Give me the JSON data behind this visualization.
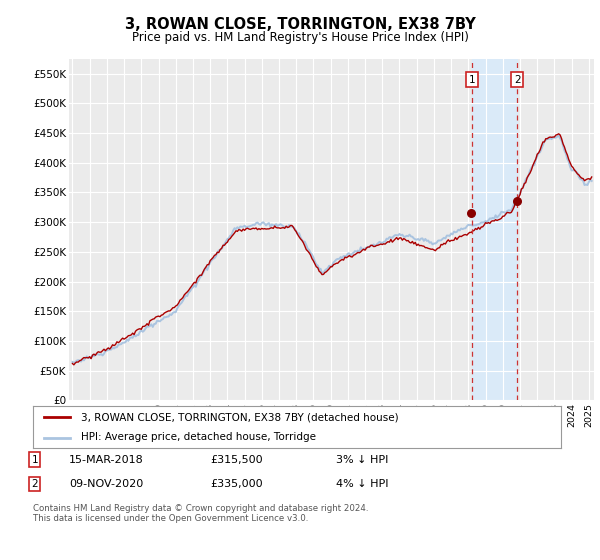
{
  "title": "3, ROWAN CLOSE, TORRINGTON, EX38 7BY",
  "subtitle": "Price paid vs. HM Land Registry's House Price Index (HPI)",
  "ylabel_ticks": [
    "£0",
    "£50K",
    "£100K",
    "£150K",
    "£200K",
    "£250K",
    "£300K",
    "£350K",
    "£400K",
    "£450K",
    "£500K",
    "£550K"
  ],
  "ytick_values": [
    0,
    50000,
    100000,
    150000,
    200000,
    250000,
    300000,
    350000,
    400000,
    450000,
    500000,
    550000
  ],
  "ylim": [
    0,
    575000
  ],
  "hpi_color": "#aac4e0",
  "price_color": "#aa0000",
  "marker_color": "#880000",
  "vline_color": "#cc3333",
  "sale1_x": 2018.2,
  "sale1_price": 315500,
  "sale1_label": "1",
  "sale1_text": "15-MAR-2018",
  "sale1_amount": "£315,500",
  "sale1_pct": "3% ↓ HPI",
  "sale2_x": 2020.85,
  "sale2_price": 335000,
  "sale2_label": "2",
  "sale2_text": "09-NOV-2020",
  "sale2_amount": "£335,000",
  "sale2_pct": "4% ↓ HPI",
  "legend_line1": "3, ROWAN CLOSE, TORRINGTON, EX38 7BY (detached house)",
  "legend_line2": "HPI: Average price, detached house, Torridge",
  "footnote": "Contains HM Land Registry data © Crown copyright and database right 2024.\nThis data is licensed under the Open Government Licence v3.0.",
  "background_color": "#ffffff",
  "plot_bg_color": "#ebebeb",
  "highlight_bg": "#daeaf8",
  "start_year": 1995,
  "end_year": 2025
}
